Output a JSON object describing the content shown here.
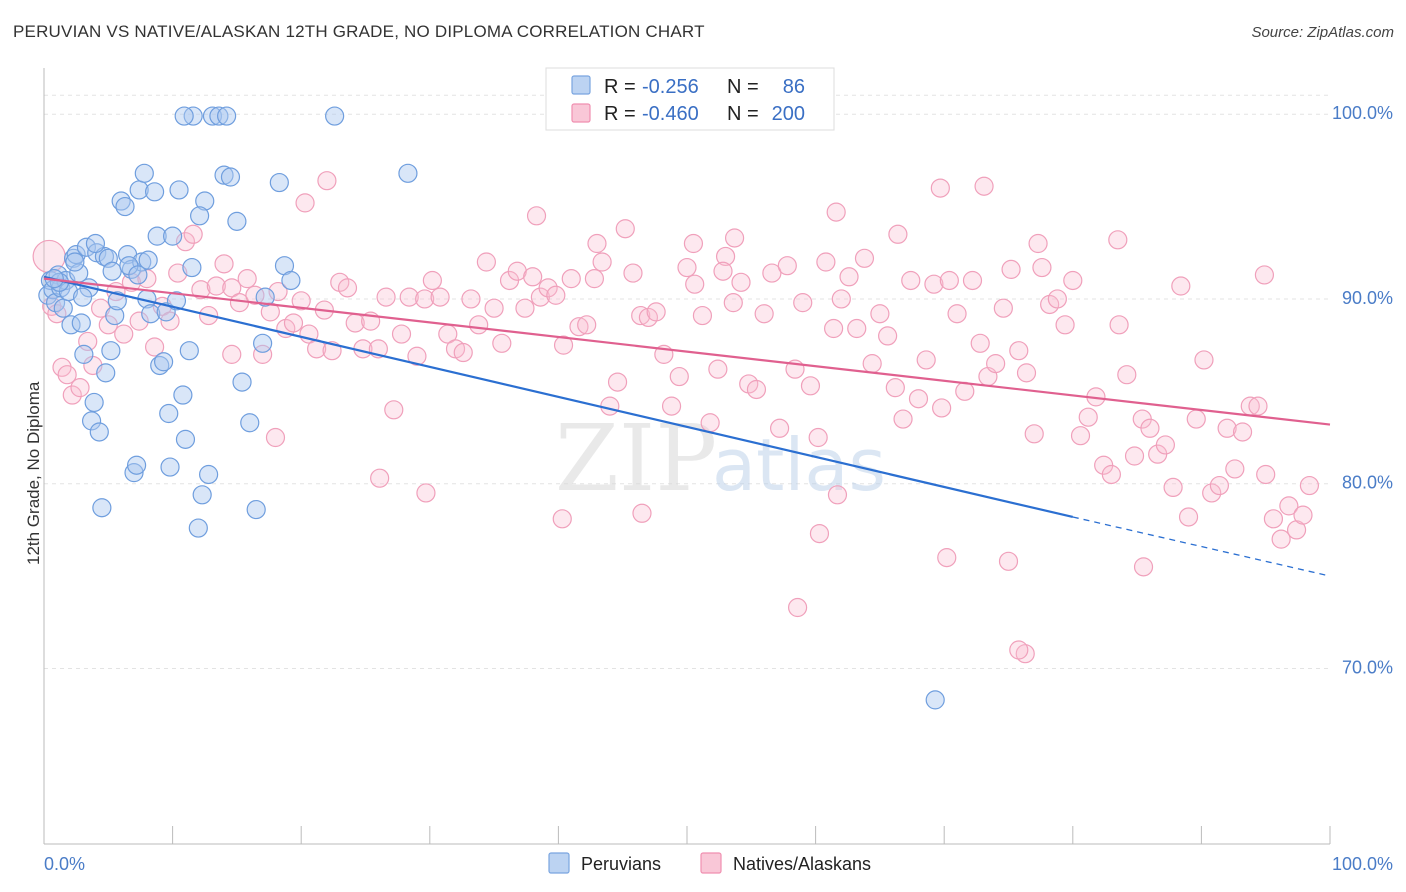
{
  "title": "PERUVIAN VS NATIVE/ALASKAN 12TH GRADE, NO DIPLOMA CORRELATION CHART",
  "source": "Source: ZipAtlas.com",
  "watermark": "ZIPatlas",
  "legend": {
    "r_label": "R =",
    "n_label": "N =",
    "rows": [
      {
        "r": "-0.256",
        "n": "86"
      },
      {
        "r": "-0.460",
        "n": "200"
      }
    ]
  },
  "bottom_legend": [
    "Peruvians",
    "Natives/Alaskans"
  ],
  "chart_data": {
    "type": "scatter",
    "xlabel": "",
    "ylabel": "12th Grade, No Diploma",
    "x_tick_labels": [
      "0.0%",
      "100.0%"
    ],
    "y_tick_labels": [
      "100.0%",
      "90.0%",
      "80.0%",
      "70.0%"
    ],
    "xlim": [
      0,
      100
    ],
    "ylim": [
      60.5,
      102.5
    ],
    "y_ticks": [
      100,
      90,
      80,
      70
    ],
    "grid": true,
    "colors": {
      "peruvians": "#6fa0e0",
      "natives": "#f08fb0",
      "peruvians_line": "#2b6fd1",
      "natives_line": "#e0608f"
    },
    "series": [
      {
        "name": "Peruvians",
        "r": -0.256,
        "n": 86,
        "trend": {
          "x0": 0,
          "y0": 91.2,
          "x1": 80,
          "y1": 78.2,
          "dash_to_x": 100,
          "dash_to_y": 75.0
        },
        "points": [
          [
            0.3,
            90.2
          ],
          [
            0.5,
            91.0
          ],
          [
            0.7,
            90.5
          ],
          [
            0.9,
            89.8
          ],
          [
            1.1,
            91.3
          ],
          [
            1.3,
            90.6
          ],
          [
            1.5,
            89.5
          ],
          [
            1.7,
            91.0
          ],
          [
            1.9,
            90.4
          ],
          [
            2.1,
            88.6
          ],
          [
            2.3,
            92.2
          ],
          [
            2.5,
            92.4
          ],
          [
            2.7,
            91.4
          ],
          [
            2.9,
            88.7
          ],
          [
            3.1,
            87.0
          ],
          [
            3.3,
            92.8
          ],
          [
            3.5,
            90.6
          ],
          [
            3.7,
            83.4
          ],
          [
            3.9,
            84.4
          ],
          [
            4.1,
            92.5
          ],
          [
            4.3,
            82.8
          ],
          [
            4.5,
            78.7
          ],
          [
            4.7,
            92.3
          ],
          [
            5.0,
            92.2
          ],
          [
            5.2,
            87.2
          ],
          [
            5.5,
            89.1
          ],
          [
            5.7,
            89.9
          ],
          [
            6.0,
            95.3
          ],
          [
            6.3,
            95.0
          ],
          [
            6.5,
            92.4
          ],
          [
            6.8,
            91.6
          ],
          [
            7.0,
            80.6
          ],
          [
            7.2,
            81.0
          ],
          [
            7.4,
            95.9
          ],
          [
            7.6,
            92.0
          ],
          [
            7.8,
            96.8
          ],
          [
            8.0,
            90.0
          ],
          [
            8.3,
            89.2
          ],
          [
            8.6,
            95.8
          ],
          [
            8.8,
            93.4
          ],
          [
            9.0,
            86.4
          ],
          [
            9.3,
            86.6
          ],
          [
            9.5,
            89.3
          ],
          [
            9.8,
            80.9
          ],
          [
            10.0,
            93.4
          ],
          [
            10.3,
            89.9
          ],
          [
            10.5,
            95.9
          ],
          [
            10.8,
            84.8
          ],
          [
            11.0,
            82.4
          ],
          [
            11.3,
            87.2
          ],
          [
            11.6,
            99.9
          ],
          [
            12.0,
            77.6
          ],
          [
            12.3,
            79.4
          ],
          [
            12.5,
            95.3
          ],
          [
            12.8,
            80.5
          ],
          [
            13.1,
            99.9
          ],
          [
            13.6,
            99.9
          ],
          [
            14.0,
            96.7
          ],
          [
            14.5,
            96.6
          ],
          [
            15.0,
            94.2
          ],
          [
            15.4,
            85.5
          ],
          [
            16.0,
            83.3
          ],
          [
            16.5,
            78.6
          ],
          [
            17.0,
            87.6
          ],
          [
            17.2,
            90.1
          ],
          [
            18.3,
            96.3
          ],
          [
            18.7,
            91.8
          ],
          [
            19.2,
            91.0
          ],
          [
            22.6,
            99.9
          ],
          [
            28.3,
            96.8
          ],
          [
            14.2,
            99.9
          ],
          [
            10.9,
            99.9
          ],
          [
            8.1,
            92.1
          ],
          [
            5.3,
            91.5
          ],
          [
            2.4,
            92.0
          ],
          [
            3.0,
            90.1
          ],
          [
            1.2,
            90.9
          ],
          [
            0.8,
            91.1
          ],
          [
            6.6,
            91.8
          ],
          [
            4.0,
            93.0
          ],
          [
            9.7,
            83.8
          ],
          [
            11.5,
            91.7
          ],
          [
            7.3,
            91.3
          ],
          [
            12.1,
            94.5
          ],
          [
            69.3,
            68.3
          ],
          [
            4.8,
            86.0
          ]
        ]
      },
      {
        "name": "Natives/Alaskans",
        "r": -0.46,
        "n": 200,
        "trend": {
          "x0": 0,
          "y0": 91.1,
          "x1": 100,
          "y1": 83.2
        },
        "points": [
          [
            0.4,
            92.3
          ],
          [
            0.6,
            89.6
          ],
          [
            1.0,
            89.2
          ],
          [
            1.4,
            86.3
          ],
          [
            1.8,
            85.9
          ],
          [
            2.2,
            84.8
          ],
          [
            2.8,
            85.2
          ],
          [
            3.4,
            87.7
          ],
          [
            3.8,
            86.4
          ],
          [
            4.4,
            89.5
          ],
          [
            5.0,
            88.6
          ],
          [
            5.6,
            90.4
          ],
          [
            6.2,
            88.1
          ],
          [
            6.8,
            90.9
          ],
          [
            7.4,
            88.8
          ],
          [
            8.0,
            91.1
          ],
          [
            8.6,
            87.4
          ],
          [
            9.2,
            89.6
          ],
          [
            9.8,
            88.8
          ],
          [
            10.4,
            91.4
          ],
          [
            11.0,
            93.1
          ],
          [
            11.6,
            93.5
          ],
          [
            12.2,
            90.5
          ],
          [
            12.8,
            89.1
          ],
          [
            13.4,
            90.7
          ],
          [
            14.0,
            91.9
          ],
          [
            14.6,
            90.6
          ],
          [
            15.2,
            89.8
          ],
          [
            15.8,
            91.1
          ],
          [
            16.4,
            90.2
          ],
          [
            17.0,
            87.0
          ],
          [
            17.6,
            89.3
          ],
          [
            18.2,
            90.4
          ],
          [
            18.8,
            88.4
          ],
          [
            19.4,
            88.7
          ],
          [
            20.0,
            89.9
          ],
          [
            20.6,
            88.1
          ],
          [
            21.2,
            87.3
          ],
          [
            21.8,
            89.4
          ],
          [
            22.4,
            87.2
          ],
          [
            23.0,
            90.9
          ],
          [
            23.6,
            90.6
          ],
          [
            24.2,
            88.7
          ],
          [
            24.8,
            87.3
          ],
          [
            25.4,
            88.8
          ],
          [
            26.0,
            87.3
          ],
          [
            26.6,
            90.1
          ],
          [
            27.2,
            84.0
          ],
          [
            27.8,
            88.1
          ],
          [
            28.4,
            90.1
          ],
          [
            29.0,
            86.9
          ],
          [
            29.6,
            90.0
          ],
          [
            30.2,
            91.0
          ],
          [
            30.8,
            90.1
          ],
          [
            31.4,
            88.1
          ],
          [
            32.0,
            87.3
          ],
          [
            32.6,
            87.1
          ],
          [
            33.2,
            90.0
          ],
          [
            33.8,
            88.6
          ],
          [
            34.4,
            92.0
          ],
          [
            35.0,
            89.5
          ],
          [
            35.6,
            87.6
          ],
          [
            36.2,
            91.0
          ],
          [
            36.8,
            91.5
          ],
          [
            37.4,
            89.5
          ],
          [
            38.0,
            91.2
          ],
          [
            38.6,
            90.1
          ],
          [
            39.2,
            90.6
          ],
          [
            39.8,
            90.2
          ],
          [
            40.4,
            87.5
          ],
          [
            41.0,
            91.1
          ],
          [
            41.6,
            88.5
          ],
          [
            42.2,
            88.6
          ],
          [
            42.8,
            91.1
          ],
          [
            43.4,
            92.0
          ],
          [
            44.0,
            84.2
          ],
          [
            44.6,
            85.5
          ],
          [
            45.2,
            93.8
          ],
          [
            45.8,
            91.4
          ],
          [
            46.4,
            89.1
          ],
          [
            47.0,
            89.0
          ],
          [
            47.6,
            89.3
          ],
          [
            48.2,
            87.0
          ],
          [
            48.8,
            84.2
          ],
          [
            49.4,
            85.8
          ],
          [
            50.0,
            91.7
          ],
          [
            50.6,
            90.8
          ],
          [
            51.2,
            89.1
          ],
          [
            51.8,
            83.3
          ],
          [
            52.4,
            86.2
          ],
          [
            53.0,
            92.3
          ],
          [
            53.6,
            89.8
          ],
          [
            54.2,
            90.9
          ],
          [
            54.8,
            85.4
          ],
          [
            55.4,
            85.1
          ],
          [
            56.0,
            89.2
          ],
          [
            56.6,
            91.4
          ],
          [
            57.2,
            83.0
          ],
          [
            57.8,
            91.8
          ],
          [
            58.4,
            86.2
          ],
          [
            59.0,
            89.8
          ],
          [
            59.6,
            85.3
          ],
          [
            60.2,
            82.5
          ],
          [
            60.8,
            92.0
          ],
          [
            61.4,
            88.4
          ],
          [
            62.0,
            90.0
          ],
          [
            62.6,
            91.2
          ],
          [
            63.2,
            88.4
          ],
          [
            63.8,
            92.2
          ],
          [
            64.4,
            86.5
          ],
          [
            65.0,
            89.2
          ],
          [
            65.6,
            88.0
          ],
          [
            66.2,
            85.2
          ],
          [
            66.8,
            83.5
          ],
          [
            67.4,
            91.0
          ],
          [
            68.0,
            84.6
          ],
          [
            68.6,
            86.7
          ],
          [
            69.2,
            90.8
          ],
          [
            69.8,
            84.1
          ],
          [
            70.4,
            91.0
          ],
          [
            71.0,
            89.2
          ],
          [
            71.6,
            85.0
          ],
          [
            72.2,
            91.0
          ],
          [
            72.8,
            87.6
          ],
          [
            73.4,
            85.8
          ],
          [
            74.0,
            86.5
          ],
          [
            74.6,
            89.5
          ],
          [
            75.2,
            91.6
          ],
          [
            75.8,
            87.2
          ],
          [
            76.4,
            86.0
          ],
          [
            77.0,
            82.7
          ],
          [
            77.6,
            91.7
          ],
          [
            78.2,
            89.7
          ],
          [
            78.8,
            90.0
          ],
          [
            79.4,
            88.6
          ],
          [
            80.0,
            91.0
          ],
          [
            80.6,
            82.6
          ],
          [
            81.2,
            83.6
          ],
          [
            81.8,
            84.7
          ],
          [
            82.4,
            81.0
          ],
          [
            83.0,
            80.5
          ],
          [
            83.6,
            88.6
          ],
          [
            84.2,
            85.9
          ],
          [
            84.8,
            81.5
          ],
          [
            85.4,
            83.5
          ],
          [
            86.0,
            83.0
          ],
          [
            86.6,
            81.6
          ],
          [
            87.2,
            82.1
          ],
          [
            87.8,
            79.8
          ],
          [
            88.4,
            90.7
          ],
          [
            89.0,
            78.2
          ],
          [
            89.6,
            83.5
          ],
          [
            90.2,
            86.7
          ],
          [
            90.8,
            79.5
          ],
          [
            91.4,
            79.9
          ],
          [
            92.0,
            83.0
          ],
          [
            92.6,
            80.8
          ],
          [
            93.2,
            82.8
          ],
          [
            93.8,
            84.2
          ],
          [
            94.4,
            84.2
          ],
          [
            95.0,
            80.5
          ],
          [
            95.6,
            78.1
          ],
          [
            96.2,
            77.0
          ],
          [
            96.8,
            78.8
          ],
          [
            97.4,
            77.5
          ],
          [
            97.9,
            78.3
          ],
          [
            20.3,
            95.2
          ],
          [
            22.0,
            96.4
          ],
          [
            38.3,
            94.5
          ],
          [
            43.0,
            93.0
          ],
          [
            50.5,
            93.0
          ],
          [
            52.8,
            91.5
          ],
          [
            53.7,
            93.3
          ],
          [
            61.6,
            94.7
          ],
          [
            66.4,
            93.5
          ],
          [
            69.7,
            96.0
          ],
          [
            73.1,
            96.1
          ],
          [
            77.3,
            93.0
          ],
          [
            83.5,
            93.2
          ],
          [
            94.9,
            91.3
          ],
          [
            46.5,
            78.4
          ],
          [
            40.3,
            78.1
          ],
          [
            29.7,
            79.5
          ],
          [
            26.1,
            80.3
          ],
          [
            18.0,
            82.5
          ],
          [
            14.6,
            87.0
          ],
          [
            58.6,
            73.3
          ],
          [
            75.0,
            75.8
          ],
          [
            76.3,
            70.8
          ],
          [
            75.8,
            71.0
          ],
          [
            85.5,
            75.5
          ],
          [
            70.2,
            76.0
          ],
          [
            60.3,
            77.3
          ],
          [
            61.7,
            79.4
          ],
          [
            98.4,
            79.9
          ]
        ]
      }
    ]
  }
}
